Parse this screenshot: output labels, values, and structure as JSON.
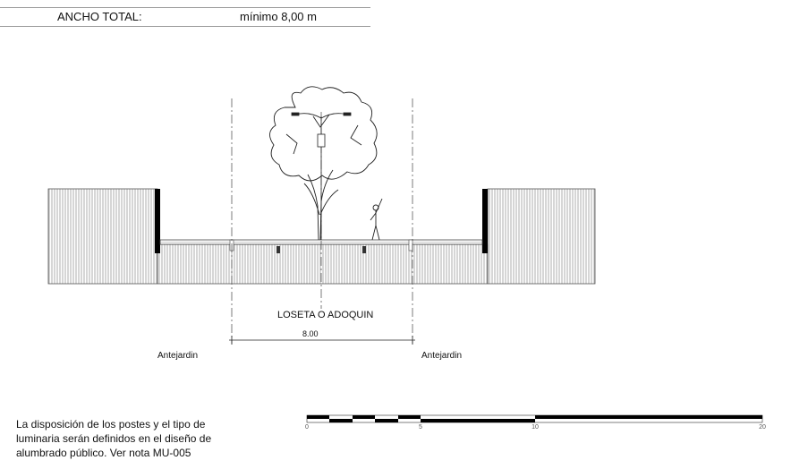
{
  "header": {
    "label": "ANCHO TOTAL:",
    "value": "mínimo 8,00 m"
  },
  "section": {
    "paving_label": "LOSETA O ADOQUIN",
    "dimension": "8.00",
    "front_garden_left": "Antejardin",
    "front_garden_right": "Antejardin"
  },
  "note": {
    "lines": [
      "La disposición de los postes y el tipo de",
      "luminaria serán definidos en el diseño de",
      "alumbrado público. Ver nota MU-005"
    ]
  },
  "scale_bar": {
    "ticks": [
      "0",
      "5",
      "10",
      "20"
    ]
  }
}
